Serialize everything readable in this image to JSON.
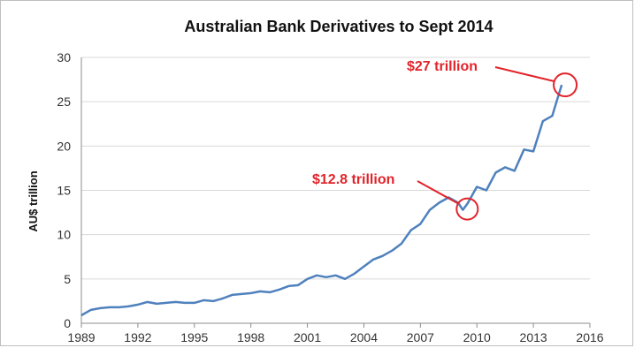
{
  "chart_data": {
    "type": "line",
    "title": "Australian Bank Derivatives to Sept 2014",
    "ylabel": "AU$ trillion",
    "xlabel": "",
    "xlim": [
      1989,
      2016
    ],
    "ylim": [
      0,
      30
    ],
    "x_ticks": [
      "1989",
      "1992",
      "1995",
      "1998",
      "2001",
      "2004",
      "2007",
      "2010",
      "2013",
      "2016"
    ],
    "y_ticks": [
      "0",
      "5",
      "10",
      "15",
      "20",
      "25",
      "30"
    ],
    "grid": true,
    "legend": "none",
    "series": [
      {
        "color": "#4f81bd",
        "x": [
          1989.0,
          1989.5,
          1990.0,
          1990.5,
          1991.0,
          1991.5,
          1992.0,
          1992.5,
          1993.0,
          1993.5,
          1994.0,
          1994.5,
          1995.0,
          1995.5,
          1996.0,
          1996.5,
          1997.0,
          1997.5,
          1998.0,
          1998.5,
          1999.0,
          1999.5,
          2000.0,
          2000.5,
          2001.0,
          2001.5,
          2002.0,
          2002.5,
          2003.0,
          2003.5,
          2004.0,
          2004.5,
          2005.0,
          2005.5,
          2006.0,
          2006.5,
          2007.0,
          2007.5,
          2008.0,
          2008.5,
          2009.0,
          2009.25,
          2009.5,
          2010.0,
          2010.5,
          2011.0,
          2011.5,
          2012.0,
          2012.5,
          2013.0,
          2013.5,
          2014.0,
          2014.5
        ],
        "y": [
          0.9,
          1.5,
          1.7,
          1.8,
          1.8,
          1.9,
          2.1,
          2.4,
          2.2,
          2.3,
          2.4,
          2.3,
          2.3,
          2.6,
          2.5,
          2.8,
          3.2,
          3.3,
          3.4,
          3.6,
          3.5,
          3.8,
          4.2,
          4.3,
          5.0,
          5.4,
          5.2,
          5.4,
          5.0,
          5.6,
          6.4,
          7.2,
          7.6,
          8.2,
          9.0,
          10.5,
          11.2,
          12.8,
          13.6,
          14.2,
          13.6,
          12.8,
          13.5,
          15.4,
          15.0,
          17.0,
          17.6,
          17.2,
          19.6,
          19.4,
          22.8,
          23.4,
          26.9
        ]
      }
    ],
    "annotations": [
      {
        "text": "$12.8 trillion",
        "x": 2009.3,
        "y": 12.9,
        "color": "#e2232a"
      },
      {
        "text": "$27 trillion",
        "x": 2014.5,
        "y": 26.9,
        "color": "#e2232a"
      }
    ]
  }
}
